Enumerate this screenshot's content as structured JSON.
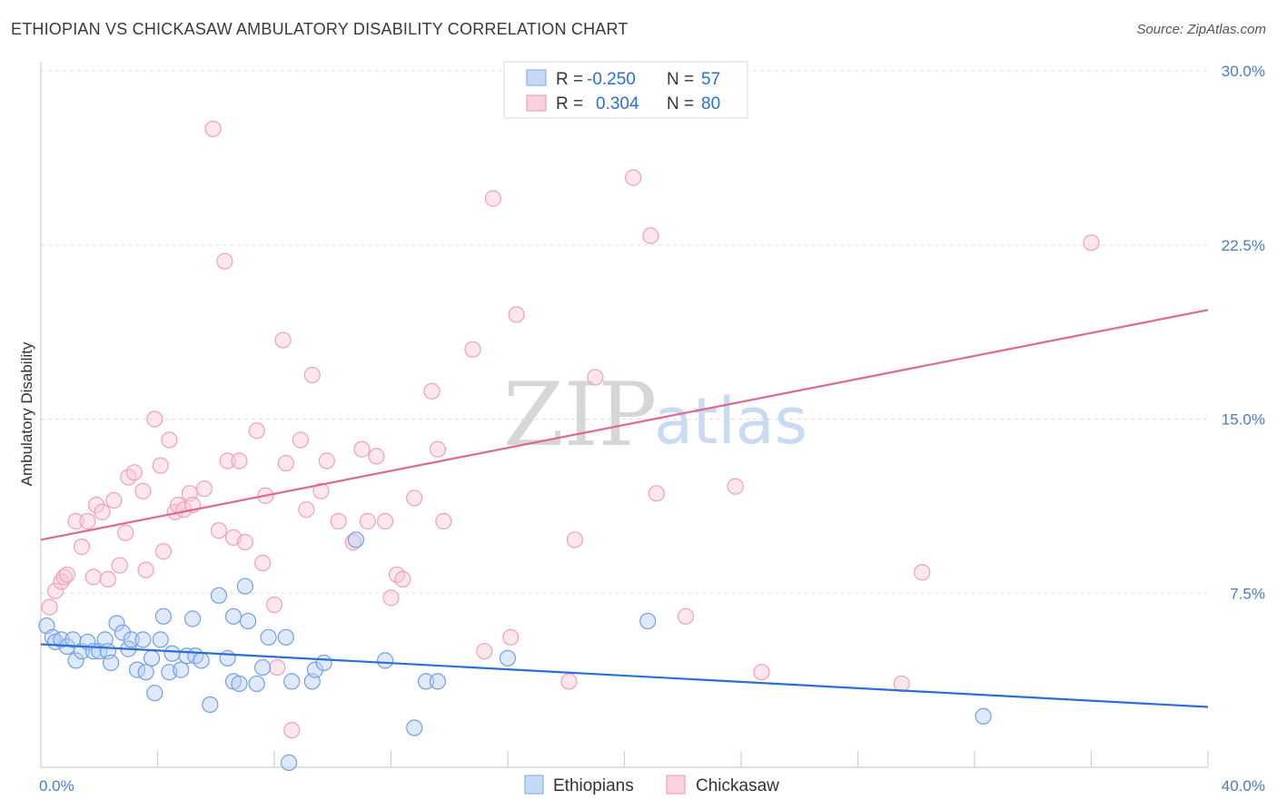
{
  "header": {
    "title": "ETHIOPIAN VS CHICKASAW AMBULATORY DISABILITY CORRELATION CHART",
    "source": "Source: ZipAtlas.com"
  },
  "watermark": {
    "zip": "ZIP",
    "atlas": "atlas"
  },
  "legend": {
    "rows": [
      {
        "r_label": "R =",
        "r_value": "-0.250",
        "n_label": "N =",
        "n_value": "57"
      },
      {
        "r_label": "R =",
        "r_value": "0.304",
        "n_label": "N =",
        "n_value": "80"
      }
    ]
  },
  "chart_data": {
    "type": "scatter",
    "xlabel": "",
    "ylabel": "Ambulatory Disability",
    "xlim": [
      0,
      40
    ],
    "ylim": [
      0,
      30
    ],
    "x_tick_labels": [
      {
        "value": 0,
        "label": "0.0%"
      },
      {
        "value": 40,
        "label": "40.0%"
      }
    ],
    "y_tick_labels": [
      {
        "value": 7.5,
        "label": "7.5%"
      },
      {
        "value": 15,
        "label": "15.0%"
      },
      {
        "value": 22.5,
        "label": "22.5%"
      },
      {
        "value": 30,
        "label": "30.0%"
      }
    ],
    "grid": "horizontal dashed",
    "legend_position": "top-center",
    "colors": {
      "Ethiopians": "#6fa0e8",
      "Chickasaw": "#f0a0ba",
      "eth_line": "#2a6fd6",
      "chk_line": "#e06890"
    },
    "series": [
      {
        "name": "Ethiopians",
        "trend": {
          "x": [
            0,
            40
          ],
          "y": [
            5.3,
            2.6
          ]
        },
        "points": [
          [
            0.2,
            6.1
          ],
          [
            0.4,
            5.6
          ],
          [
            0.5,
            5.4
          ],
          [
            0.7,
            5.5
          ],
          [
            0.9,
            5.2
          ],
          [
            1.1,
            5.5
          ],
          [
            1.2,
            4.6
          ],
          [
            1.4,
            5.0
          ],
          [
            1.6,
            5.4
          ],
          [
            1.8,
            5.0
          ],
          [
            2.0,
            5.0
          ],
          [
            2.2,
            5.5
          ],
          [
            2.3,
            5.0
          ],
          [
            2.4,
            4.5
          ],
          [
            2.6,
            6.2
          ],
          [
            2.8,
            5.8
          ],
          [
            3.0,
            5.1
          ],
          [
            3.1,
            5.5
          ],
          [
            3.3,
            4.2
          ],
          [
            3.5,
            5.5
          ],
          [
            3.6,
            4.1
          ],
          [
            3.8,
            4.7
          ],
          [
            3.9,
            3.2
          ],
          [
            4.1,
            5.5
          ],
          [
            4.2,
            6.5
          ],
          [
            4.4,
            4.1
          ],
          [
            4.5,
            4.9
          ],
          [
            4.8,
            4.2
          ],
          [
            5.0,
            4.8
          ],
          [
            5.2,
            6.4
          ],
          [
            5.3,
            4.8
          ],
          [
            5.5,
            4.6
          ],
          [
            5.8,
            2.7
          ],
          [
            6.1,
            7.4
          ],
          [
            6.4,
            4.7
          ],
          [
            6.6,
            3.7
          ],
          [
            6.8,
            3.6
          ],
          [
            7.0,
            7.8
          ],
          [
            7.1,
            6.3
          ],
          [
            7.4,
            3.6
          ],
          [
            7.6,
            4.3
          ],
          [
            7.8,
            5.6
          ],
          [
            8.4,
            5.6
          ],
          [
            8.5,
            0.2
          ],
          [
            8.6,
            3.7
          ],
          [
            9.3,
            3.7
          ],
          [
            9.4,
            4.2
          ],
          [
            9.7,
            4.5
          ],
          [
            10.8,
            9.8
          ],
          [
            11.8,
            4.6
          ],
          [
            12.8,
            1.7
          ],
          [
            13.2,
            3.7
          ],
          [
            13.6,
            3.7
          ],
          [
            16.0,
            4.7
          ],
          [
            20.8,
            6.3
          ],
          [
            32.3,
            2.2
          ],
          [
            6.6,
            6.5
          ]
        ]
      },
      {
        "name": "Chickasaw",
        "trend": {
          "x": [
            0,
            40
          ],
          "y": [
            9.8,
            19.7
          ]
        },
        "points": [
          [
            0.3,
            6.9
          ],
          [
            0.5,
            7.6
          ],
          [
            0.7,
            8.0
          ],
          [
            0.8,
            8.2
          ],
          [
            0.9,
            8.3
          ],
          [
            1.2,
            10.6
          ],
          [
            1.4,
            9.5
          ],
          [
            1.6,
            10.6
          ],
          [
            1.8,
            8.2
          ],
          [
            1.9,
            11.3
          ],
          [
            2.1,
            11.0
          ],
          [
            2.3,
            8.1
          ],
          [
            2.5,
            11.5
          ],
          [
            2.7,
            8.7
          ],
          [
            2.9,
            10.1
          ],
          [
            3.0,
            12.5
          ],
          [
            3.2,
            12.7
          ],
          [
            3.5,
            11.9
          ],
          [
            3.6,
            8.5
          ],
          [
            3.9,
            15.0
          ],
          [
            4.1,
            13.0
          ],
          [
            4.2,
            9.3
          ],
          [
            4.4,
            14.1
          ],
          [
            4.6,
            11.0
          ],
          [
            4.7,
            11.3
          ],
          [
            4.9,
            11.1
          ],
          [
            5.1,
            11.8
          ],
          [
            5.2,
            11.3
          ],
          [
            5.6,
            12.0
          ],
          [
            5.9,
            27.5
          ],
          [
            6.1,
            10.2
          ],
          [
            6.3,
            21.8
          ],
          [
            6.4,
            13.2
          ],
          [
            6.6,
            9.9
          ],
          [
            6.8,
            13.2
          ],
          [
            7.0,
            9.7
          ],
          [
            7.4,
            14.5
          ],
          [
            7.6,
            8.8
          ],
          [
            7.7,
            11.7
          ],
          [
            8.0,
            7.0
          ],
          [
            8.1,
            4.3
          ],
          [
            8.3,
            18.4
          ],
          [
            8.4,
            13.1
          ],
          [
            8.6,
            1.6
          ],
          [
            8.9,
            14.1
          ],
          [
            9.1,
            11.1
          ],
          [
            9.3,
            16.9
          ],
          [
            9.6,
            11.9
          ],
          [
            9.8,
            13.2
          ],
          [
            10.2,
            10.6
          ],
          [
            10.7,
            9.7
          ],
          [
            11.0,
            13.7
          ],
          [
            11.2,
            10.6
          ],
          [
            11.5,
            13.4
          ],
          [
            11.8,
            10.6
          ],
          [
            12.0,
            7.3
          ],
          [
            12.2,
            8.3
          ],
          [
            12.4,
            8.1
          ],
          [
            12.8,
            11.6
          ],
          [
            13.4,
            16.2
          ],
          [
            13.6,
            13.7
          ],
          [
            13.8,
            10.6
          ],
          [
            14.8,
            18.0
          ],
          [
            15.2,
            5.0
          ],
          [
            15.5,
            24.5
          ],
          [
            16.1,
            5.6
          ],
          [
            16.3,
            19.5
          ],
          [
            17.2,
            29.9
          ],
          [
            18.1,
            3.7
          ],
          [
            18.3,
            9.8
          ],
          [
            19.0,
            16.8
          ],
          [
            20.3,
            25.4
          ],
          [
            20.9,
            22.9
          ],
          [
            21.1,
            11.8
          ],
          [
            22.1,
            6.5
          ],
          [
            23.8,
            12.1
          ],
          [
            24.7,
            4.1
          ],
          [
            29.5,
            3.6
          ],
          [
            30.2,
            8.4
          ],
          [
            36.0,
            22.6
          ]
        ]
      }
    ]
  },
  "bottom_legend": {
    "items": [
      {
        "label": "Ethiopians"
      },
      {
        "label": "Chickasaw"
      }
    ]
  }
}
